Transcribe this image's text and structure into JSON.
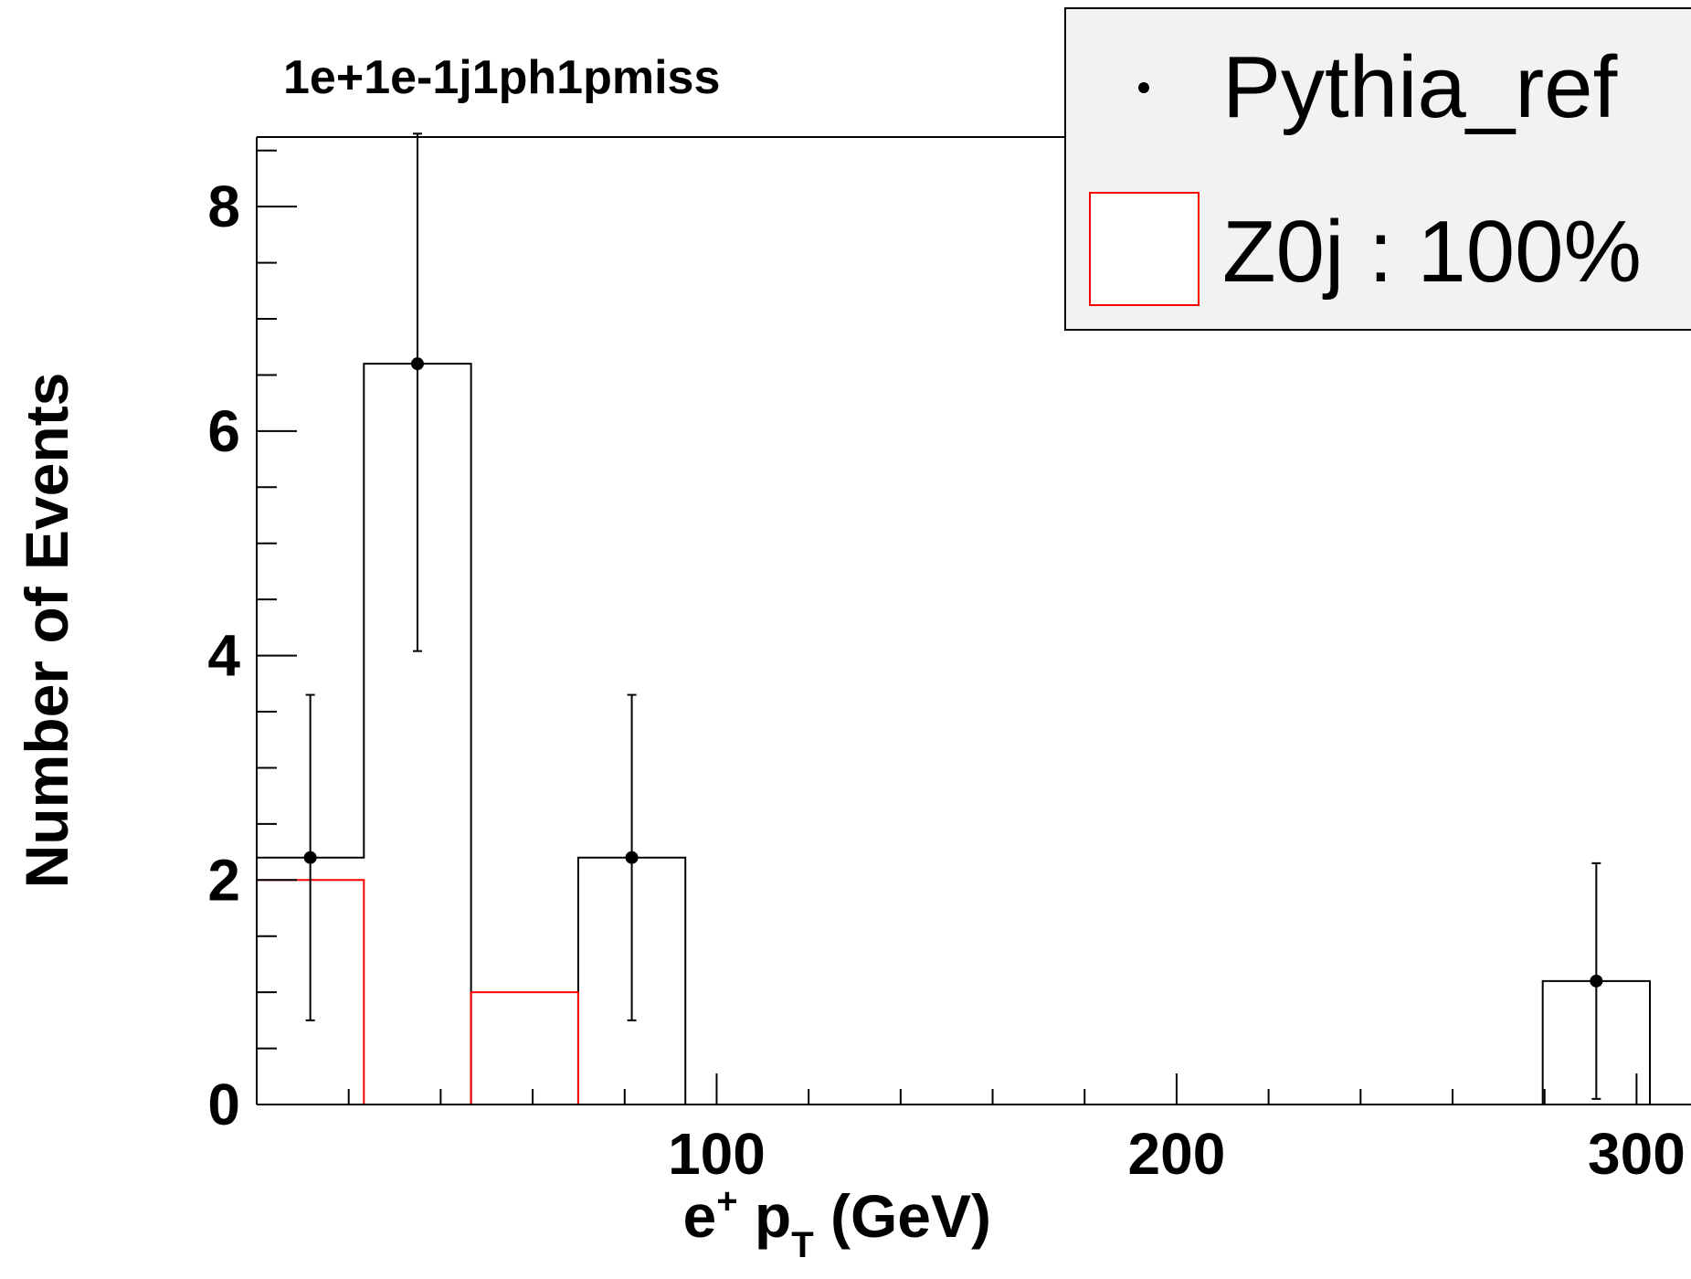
{
  "chart_data": {
    "type": "bar",
    "title": "1e+1e-1j1ph1pmiss",
    "xlabel": {
      "main": "e",
      "sup": "+",
      "mid": " p",
      "sub": "T",
      "tail": " (GeV)"
    },
    "ylabel": "Number of Events",
    "xlim": [
      0,
      303
    ],
    "ylim": [
      0,
      8.62
    ],
    "x_major_ticks": [
      100,
      200,
      300
    ],
    "x_minor_step": 20,
    "y_major_ticks": [
      0,
      2,
      4,
      6,
      8
    ],
    "y_minor_step": 0.5,
    "bin_edges": [
      0,
      23.3,
      46.6,
      69.9,
      93.2,
      116.5,
      139.8,
      163.1,
      186.4,
      209.7,
      233.0,
      256.3,
      279.6,
      302.9
    ],
    "series": [
      {
        "name": "Pythia_ref",
        "style": "points",
        "color": "#000000",
        "values": [
          2.2,
          6.6,
          0,
          2.2,
          0,
          0,
          0,
          0,
          0,
          0,
          0,
          0,
          1.1
        ],
        "err_low": [
          1.45,
          2.56,
          0,
          1.45,
          0,
          0,
          0,
          0,
          0,
          0,
          0,
          0,
          1.05
        ],
        "err_high": [
          1.45,
          2.05,
          0,
          1.45,
          0,
          0,
          0,
          0,
          0,
          0,
          0,
          0,
          1.05
        ]
      },
      {
        "name": "Z0j : 100%",
        "style": "histogram",
        "color": "#ff0000",
        "values": [
          2.0,
          0,
          1.0,
          0,
          0,
          0,
          0,
          0,
          0,
          0,
          0,
          0,
          0
        ]
      }
    ],
    "legend": {
      "position": "top-right",
      "background": "#f2f2f2",
      "entries": [
        {
          "label": "Pythia_ref",
          "marker": "point"
        },
        {
          "label": "Z0j : 100%",
          "marker": "box-red"
        }
      ]
    }
  }
}
